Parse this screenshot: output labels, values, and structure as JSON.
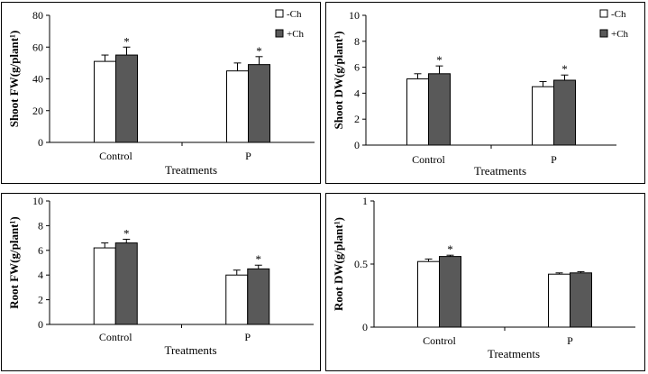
{
  "colors": {
    "neg_ch": "#ffffff",
    "pos_ch": "#595959",
    "axis": "#000000"
  },
  "legend": [
    "-Ch",
    "+Ch"
  ],
  "chart_data": [
    {
      "type": "bar",
      "title": "",
      "ylabel": "Shoot FW(g/plant¹)",
      "xlabel": "Treatments",
      "categories": [
        "Control",
        "P"
      ],
      "ylim": [
        0,
        80
      ],
      "yticks": [
        "0",
        "20",
        "40",
        "60",
        "80"
      ],
      "series": [
        {
          "name": "-Ch",
          "values": [
            51,
            45
          ],
          "errors": [
            4,
            5
          ]
        },
        {
          "name": "+Ch",
          "values": [
            55,
            49
          ],
          "errors": [
            5,
            5
          ]
        }
      ],
      "annotations": [
        {
          "category": "Control",
          "series": "+Ch",
          "text": "*"
        },
        {
          "category": "P",
          "series": "+Ch",
          "text": "*"
        }
      ],
      "legend_shown": true
    },
    {
      "type": "bar",
      "title": "",
      "ylabel": "Shoot DW(g/plant¹)",
      "xlabel": "Treatments",
      "categories": [
        "Control",
        "P"
      ],
      "ylim": [
        0,
        10
      ],
      "yticks": [
        "0",
        "2",
        "4",
        "6",
        "8",
        "10"
      ],
      "series": [
        {
          "name": "-Ch",
          "values": [
            5.1,
            4.5
          ],
          "errors": [
            0.4,
            0.4
          ]
        },
        {
          "name": "+Ch",
          "values": [
            5.5,
            5.0
          ],
          "errors": [
            0.6,
            0.4
          ]
        }
      ],
      "annotations": [
        {
          "category": "Control",
          "series": "+Ch",
          "text": "*"
        },
        {
          "category": "P",
          "series": "+Ch",
          "text": "*"
        }
      ],
      "legend_shown": true
    },
    {
      "type": "bar",
      "title": "",
      "ylabel": "Root FW(g/plant¹)",
      "xlabel": "Treatments",
      "categories": [
        "Control",
        "P"
      ],
      "ylim": [
        0,
        10
      ],
      "yticks": [
        "0",
        "2",
        "4",
        "6",
        "8",
        "10"
      ],
      "series": [
        {
          "name": "-Ch",
          "values": [
            6.2,
            4.0
          ],
          "errors": [
            0.4,
            0.4
          ]
        },
        {
          "name": "+Ch",
          "values": [
            6.6,
            4.5
          ],
          "errors": [
            0.3,
            0.3
          ]
        }
      ],
      "annotations": [
        {
          "category": "Control",
          "series": "+Ch",
          "text": "*"
        },
        {
          "category": "P",
          "series": "+Ch",
          "text": "*"
        }
      ],
      "legend_shown": false
    },
    {
      "type": "bar",
      "title": "",
      "ylabel": "Root DW(g/plant¹)",
      "xlabel": "Treatments",
      "categories": [
        "Control",
        "P"
      ],
      "ylim": [
        0,
        1
      ],
      "yticks": [
        "0",
        "0.5",
        "1"
      ],
      "series": [
        {
          "name": "-Ch",
          "values": [
            0.52,
            0.42
          ],
          "errors": [
            0.02,
            0.01
          ]
        },
        {
          "name": "+Ch",
          "values": [
            0.56,
            0.43
          ],
          "errors": [
            0.01,
            0.01
          ]
        }
      ],
      "annotations": [
        {
          "category": "Control",
          "series": "+Ch",
          "text": "*"
        }
      ],
      "legend_shown": false
    }
  ]
}
